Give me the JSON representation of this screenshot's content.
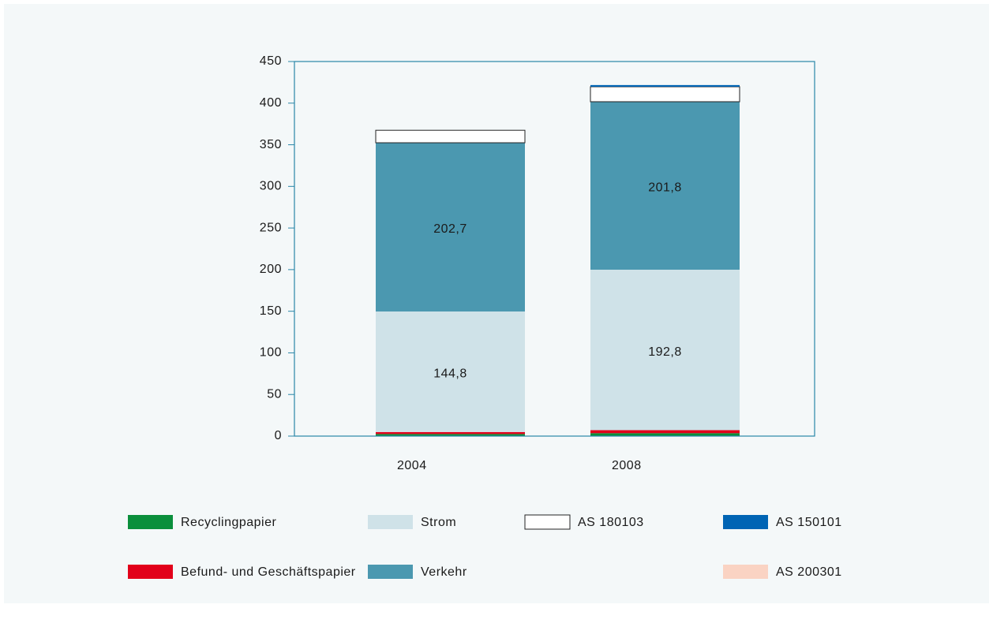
{
  "chart_data": {
    "type": "stacked-bar",
    "categories": [
      "2004",
      "2008"
    ],
    "series": [
      {
        "name": "Recycling­papier",
        "color": "#0a8f3c",
        "values": [
          2.5,
          3.5
        ]
      },
      {
        "name": "Befund- und Geschäftspapier",
        "color": "#e2001a",
        "values": [
          2.4,
          3.6
        ]
      },
      {
        "name": "Strom",
        "color": "#cfe2e8",
        "values": [
          144.8,
          192.8
        ],
        "value_labels": [
          "144,8",
          "192,8"
        ]
      },
      {
        "name": "Verkehr",
        "color": "#4b98b0",
        "values": [
          202.7,
          201.8
        ],
        "value_labels": [
          "202,7",
          "201,8"
        ]
      },
      {
        "name": "AS 180103",
        "color": "#ffffff",
        "values": [
          15,
          18
        ]
      },
      {
        "name": "AS 150101",
        "color": "#0064b4",
        "values": [
          0,
          2
        ]
      },
      {
        "name": "AS 200301",
        "color": "#fad3c3",
        "values": [
          0,
          0
        ]
      }
    ],
    "ylim": [
      0,
      450
    ],
    "yticks": [
      0,
      50,
      100,
      150,
      200,
      250,
      300,
      350,
      400,
      450
    ]
  }
}
